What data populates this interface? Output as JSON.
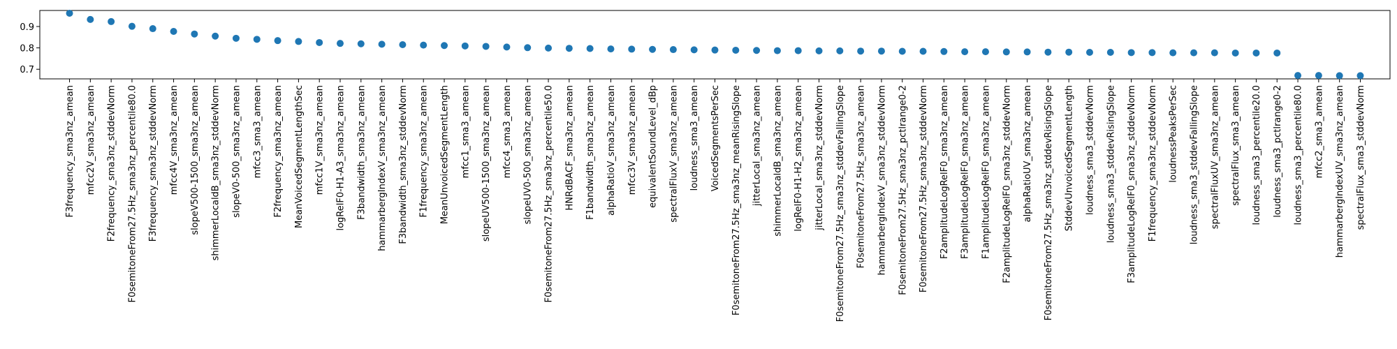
{
  "colors": {
    "marker": "#1f77b4",
    "axes": "#000000",
    "background": "#ffffff"
  },
  "chart_data": {
    "type": "scatter",
    "title": "",
    "xlabel": "",
    "ylabel": "",
    "ylim": [
      0.655,
      0.975
    ],
    "yticks": [
      0.7,
      0.8,
      0.9
    ],
    "ytick_labels": [
      "0.7",
      "0.8",
      "0.9"
    ],
    "grid": false,
    "categories": [
      "F3frequency_sma3nz_amean",
      "mfcc2V_sma3nz_amean",
      "F2frequency_sma3nz_stddevNorm",
      "F0semitoneFrom27.5Hz_sma3nz_percentile80.0",
      "F3frequency_sma3nz_stddevNorm",
      "mfcc4V_sma3nz_amean",
      "slopeV500-1500_sma3nz_amean",
      "shimmerLocaldB_sma3nz_stddevNorm",
      "slopeV0-500_sma3nz_amean",
      "mfcc3_sma3_amean",
      "F2frequency_sma3nz_amean",
      "MeanVoicedSegmentLengthSec",
      "mfcc1V_sma3nz_amean",
      "logRelF0-H1-A3_sma3nz_amean",
      "F3bandwidth_sma3nz_amean",
      "hammarbergIndexV_sma3nz_amean",
      "F3bandwidth_sma3nz_stddevNorm",
      "F1frequency_sma3nz_amean",
      "MeanUnvoicedSegmentLength",
      "mfcc1_sma3_amean",
      "slopeUV500-1500_sma3nz_amean",
      "mfcc4_sma3_amean",
      "slopeUV0-500_sma3nz_amean",
      "F0semitoneFrom27.5Hz_sma3nz_percentile50.0",
      "HNRdBACF_sma3nz_amean",
      "F1bandwidth_sma3nz_amean",
      "alphaRatioV_sma3nz_amean",
      "mfcc3V_sma3nz_amean",
      "equivalentSoundLevel_dBp",
      "spectralFluxV_sma3nz_amean",
      "loudness_sma3_amean",
      "VoicedSegmentsPerSec",
      "F0semitoneFrom27.5Hz_sma3nz_meanRisingSlope",
      "jitterLocal_sma3nz_amean",
      "shimmerLocaldB_sma3nz_amean",
      "logRelF0-H1-H2_sma3nz_amean",
      "jitterLocal_sma3nz_stddevNorm",
      "F0semitoneFrom27.5Hz_sma3nz_stddevFallingSlope",
      "F0semitoneFrom27.5Hz_sma3nz_amean",
      "hammarbergIndexV_sma3nz_stddevNorm",
      "F0semitoneFrom27.5Hz_sma3nz_pctlrange0-2",
      "F0semitoneFrom27.5Hz_sma3nz_stddevNorm",
      "F2amplitudeLogRelF0_sma3nz_amean",
      "F3amplitudeLogRelF0_sma3nz_amean",
      "F1amplitudeLogRelF0_sma3nz_amean",
      "F2amplitudeLogRelF0_sma3nz_stddevNorm",
      "alphaRatioUV_sma3nz_amean",
      "F0semitoneFrom27.5Hz_sma3nz_stddevRisingSlope",
      "StddevUnvoicedSegmentLength",
      "loudness_sma3_stddevNorm",
      "loudness_sma3_stddevRisingSlope",
      "F3amplitudeLogRelF0_sma3nz_stddevNorm",
      "F1frequency_sma3nz_stddevNorm",
      "loudnessPeaksPerSec",
      "loudness_sma3_stddevFallingSlope",
      "spectralFluxUV_sma3nz_amean",
      "spectralFlux_sma3_amean",
      "loudness_sma3_percentile20.0",
      "loudness_sma3_pctlrange0-2",
      "loudness_sma3_percentile80.0",
      "mfcc2_sma3_amean",
      "hammarbergIndexUV_sma3nz_amean",
      "spectralFlux_sma3_stddevNorm"
    ],
    "values": [
      0.962,
      0.933,
      0.923,
      0.901,
      0.89,
      0.877,
      0.865,
      0.855,
      0.845,
      0.84,
      0.834,
      0.83,
      0.825,
      0.821,
      0.819,
      0.817,
      0.815,
      0.813,
      0.811,
      0.809,
      0.807,
      0.804,
      0.801,
      0.799,
      0.798,
      0.797,
      0.795,
      0.794,
      0.793,
      0.792,
      0.791,
      0.79,
      0.789,
      0.788,
      0.787,
      0.787,
      0.786,
      0.786,
      0.785,
      0.785,
      0.784,
      0.784,
      0.783,
      0.782,
      0.782,
      0.781,
      0.781,
      0.78,
      0.78,
      0.779,
      0.779,
      0.778,
      0.778,
      0.777,
      0.777,
      0.777,
      0.776,
      0.776,
      0.776,
      0.671,
      0.671,
      0.67,
      0.67
    ]
  }
}
